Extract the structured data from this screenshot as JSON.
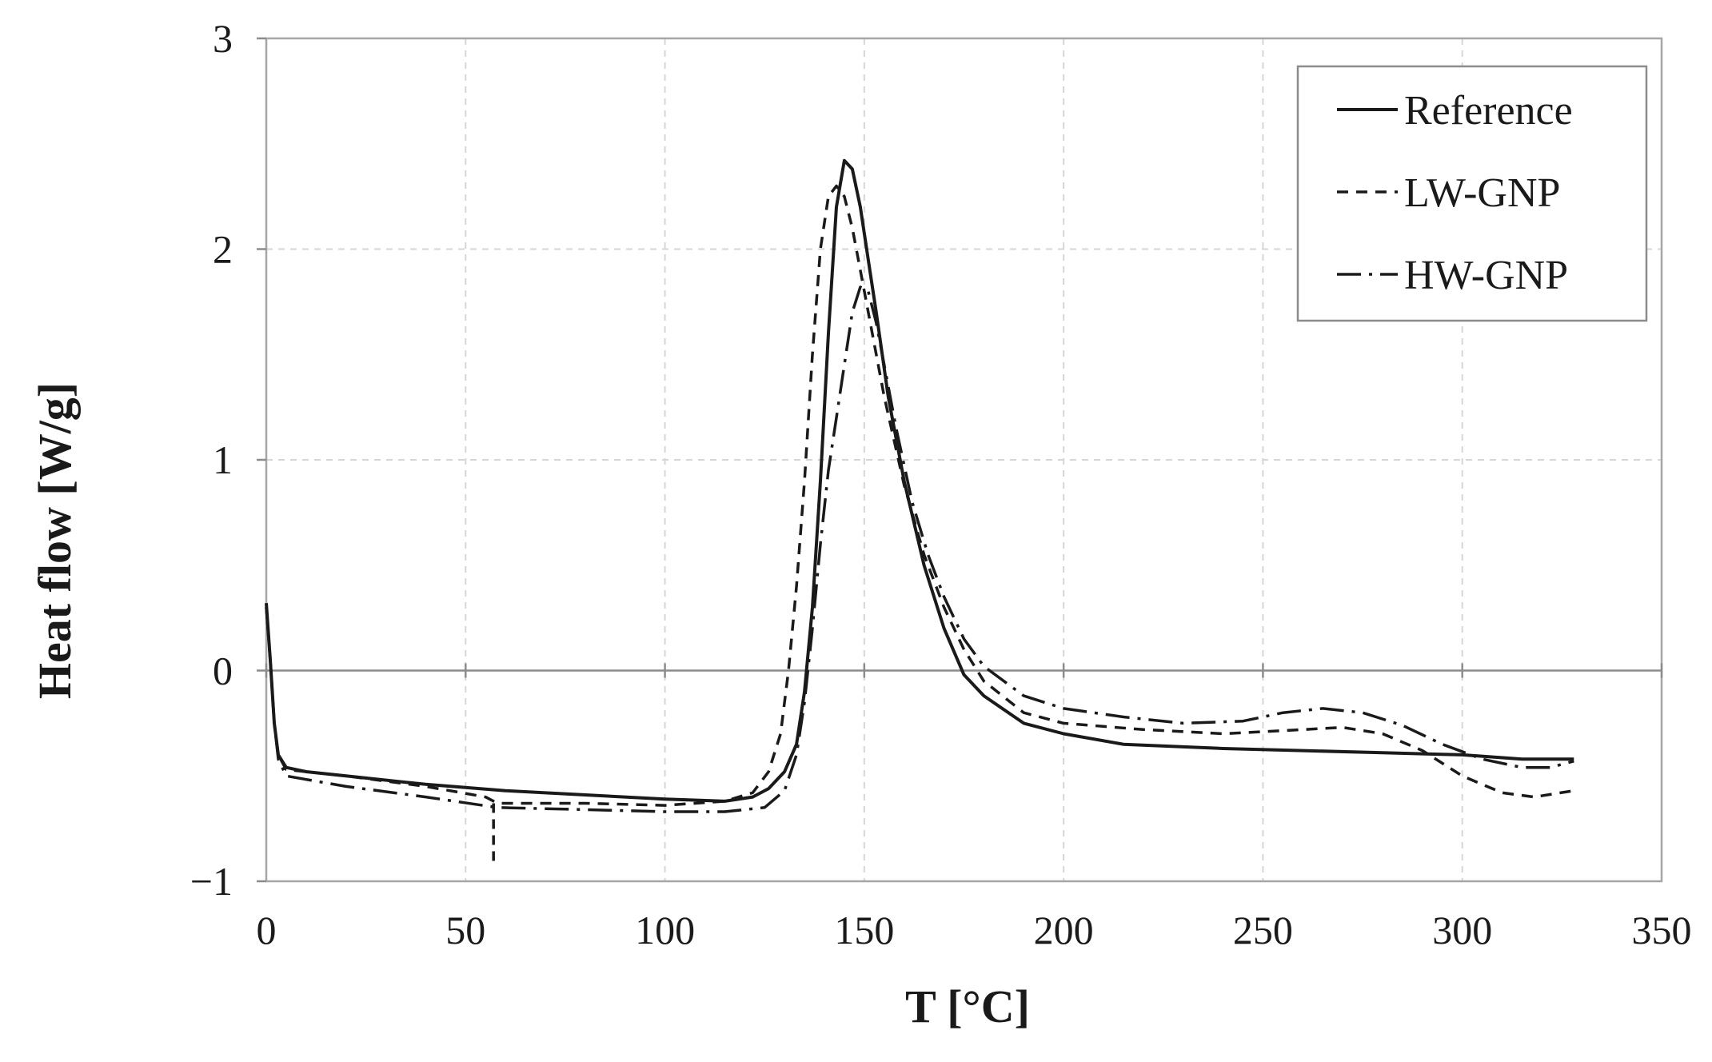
{
  "chart_data": {
    "type": "line",
    "title": "",
    "xlabel": "T [°C]",
    "ylabel": "Heat flow [W/g]",
    "xlim": [
      0,
      350
    ],
    "ylim": [
      -1,
      3
    ],
    "xticks": [
      0,
      50,
      100,
      150,
      200,
      250,
      300,
      350
    ],
    "yticks": [
      -1,
      0,
      1,
      2,
      3
    ],
    "ytick_labels": [
      "−1",
      "0",
      "1",
      "2",
      "3"
    ],
    "grid": true,
    "legend_position": "top-right",
    "series": [
      {
        "name": "Reference",
        "style": "solid",
        "color": "#1a1a1a",
        "points": [
          [
            0,
            0.32
          ],
          [
            1,
            0.05
          ],
          [
            2,
            -0.25
          ],
          [
            3,
            -0.4
          ],
          [
            5,
            -0.46
          ],
          [
            10,
            -0.48
          ],
          [
            20,
            -0.5
          ],
          [
            40,
            -0.54
          ],
          [
            60,
            -0.57
          ],
          [
            80,
            -0.59
          ],
          [
            100,
            -0.61
          ],
          [
            115,
            -0.62
          ],
          [
            122,
            -0.6
          ],
          [
            126,
            -0.56
          ],
          [
            130,
            -0.48
          ],
          [
            133,
            -0.35
          ],
          [
            135,
            -0.1
          ],
          [
            137,
            0.3
          ],
          [
            139,
            0.9
          ],
          [
            141,
            1.6
          ],
          [
            143,
            2.2
          ],
          [
            145,
            2.42
          ],
          [
            147,
            2.38
          ],
          [
            149,
            2.2
          ],
          [
            151,
            1.95
          ],
          [
            153,
            1.7
          ],
          [
            156,
            1.3
          ],
          [
            160,
            0.9
          ],
          [
            165,
            0.5
          ],
          [
            170,
            0.2
          ],
          [
            175,
            -0.02
          ],
          [
            180,
            -0.12
          ],
          [
            190,
            -0.25
          ],
          [
            200,
            -0.3
          ],
          [
            215,
            -0.35
          ],
          [
            240,
            -0.37
          ],
          [
            260,
            -0.38
          ],
          [
            280,
            -0.39
          ],
          [
            300,
            -0.4
          ],
          [
            315,
            -0.42
          ],
          [
            328,
            -0.42
          ]
        ]
      },
      {
        "name": "LW-GNP",
        "style": "dashed",
        "color": "#1a1a1a",
        "points": [
          [
            0,
            0.3
          ],
          [
            1,
            0.05
          ],
          [
            2,
            -0.25
          ],
          [
            3,
            -0.4
          ],
          [
            5,
            -0.47
          ],
          [
            20,
            -0.5
          ],
          [
            40,
            -0.55
          ],
          [
            55,
            -0.6
          ],
          [
            58,
            -0.63
          ],
          [
            80,
            -0.63
          ],
          [
            100,
            -0.64
          ],
          [
            115,
            -0.62
          ],
          [
            122,
            -0.58
          ],
          [
            126,
            -0.48
          ],
          [
            129,
            -0.3
          ],
          [
            131,
            0.0
          ],
          [
            133,
            0.4
          ],
          [
            135,
            0.9
          ],
          [
            137,
            1.5
          ],
          [
            139,
            2.0
          ],
          [
            141,
            2.25
          ],
          [
            143,
            2.3
          ],
          [
            145,
            2.25
          ],
          [
            147,
            2.1
          ],
          [
            150,
            1.8
          ],
          [
            155,
            1.3
          ],
          [
            160,
            0.88
          ],
          [
            165,
            0.55
          ],
          [
            170,
            0.3
          ],
          [
            175,
            0.1
          ],
          [
            180,
            -0.05
          ],
          [
            190,
            -0.2
          ],
          [
            200,
            -0.25
          ],
          [
            220,
            -0.28
          ],
          [
            240,
            -0.3
          ],
          [
            260,
            -0.28
          ],
          [
            270,
            -0.27
          ],
          [
            280,
            -0.3
          ],
          [
            290,
            -0.38
          ],
          [
            300,
            -0.5
          ],
          [
            310,
            -0.58
          ],
          [
            318,
            -0.6
          ],
          [
            328,
            -0.57
          ]
        ]
      },
      {
        "name": "HW-GNP",
        "style": "dashdot",
        "color": "#1a1a1a",
        "points": [
          [
            0,
            0.3
          ],
          [
            1,
            0.05
          ],
          [
            2,
            -0.25
          ],
          [
            3,
            -0.42
          ],
          [
            5,
            -0.5
          ],
          [
            20,
            -0.55
          ],
          [
            40,
            -0.6
          ],
          [
            58,
            -0.65
          ],
          [
            80,
            -0.66
          ],
          [
            100,
            -0.67
          ],
          [
            115,
            -0.67
          ],
          [
            125,
            -0.65
          ],
          [
            130,
            -0.57
          ],
          [
            133,
            -0.4
          ],
          [
            135,
            -0.15
          ],
          [
            137,
            0.2
          ],
          [
            139,
            0.6
          ],
          [
            141,
            0.95
          ],
          [
            143,
            1.2
          ],
          [
            145,
            1.45
          ],
          [
            147,
            1.7
          ],
          [
            149,
            1.82
          ],
          [
            151,
            1.8
          ],
          [
            153,
            1.65
          ],
          [
            155,
            1.45
          ],
          [
            158,
            1.15
          ],
          [
            162,
            0.8
          ],
          [
            166,
            0.55
          ],
          [
            170,
            0.35
          ],
          [
            175,
            0.15
          ],
          [
            180,
            0.02
          ],
          [
            190,
            -0.12
          ],
          [
            200,
            -0.18
          ],
          [
            215,
            -0.22
          ],
          [
            230,
            -0.25
          ],
          [
            245,
            -0.24
          ],
          [
            255,
            -0.2
          ],
          [
            265,
            -0.18
          ],
          [
            275,
            -0.2
          ],
          [
            285,
            -0.26
          ],
          [
            295,
            -0.35
          ],
          [
            305,
            -0.42
          ],
          [
            315,
            -0.46
          ],
          [
            322,
            -0.46
          ],
          [
            328,
            -0.43
          ]
        ]
      }
    ],
    "annotations": [
      {
        "kind": "vertical-dashed-segment",
        "x": 57,
        "y_from": -0.63,
        "y_to": -0.93
      }
    ]
  }
}
